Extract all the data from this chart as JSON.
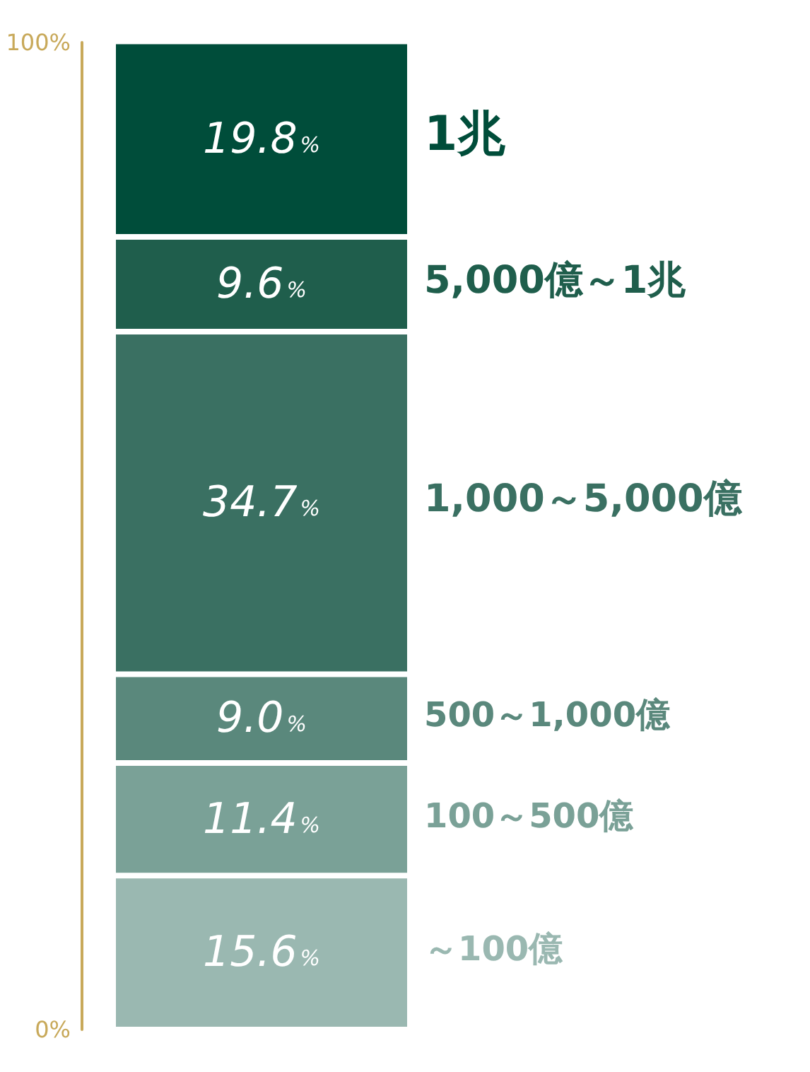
{
  "chart_data": {
    "type": "bar",
    "stacked": true,
    "categories": [
      null
    ],
    "series": [
      {
        "name": "～100億",
        "color": "#9ab8b1",
        "values": [
          15.6
        ],
        "value_labels": [
          "15.6%"
        ]
      },
      {
        "name": "100～500億",
        "color": "#7aa197",
        "values": [
          11.4
        ],
        "value_labels": [
          "11.4%"
        ]
      },
      {
        "name": "500～1,000億",
        "color": "#5a887c",
        "values": [
          9.0
        ],
        "value_labels": [
          "9.0%"
        ]
      },
      {
        "name": "1,000～5,000億",
        "color": "#3a7062",
        "values": [
          34.7
        ],
        "value_labels": [
          "34.7%"
        ]
      },
      {
        "name": "5,000億～1兆",
        "color": "#1f5e4c",
        "values": [
          9.6
        ],
        "value_labels": [
          "9.6%"
        ]
      },
      {
        "name": "1兆",
        "color": "#004d3a",
        "values": [
          19.8
        ],
        "value_labels": [
          "19.8%"
        ]
      }
    ],
    "ylim": [
      0,
      100
    ],
    "yticks": [
      {
        "value": 0,
        "label": "0%"
      },
      {
        "value": 100,
        "label": "100%"
      }
    ],
    "grid": false,
    "legend": false,
    "tick_labels": "y"
  }
}
